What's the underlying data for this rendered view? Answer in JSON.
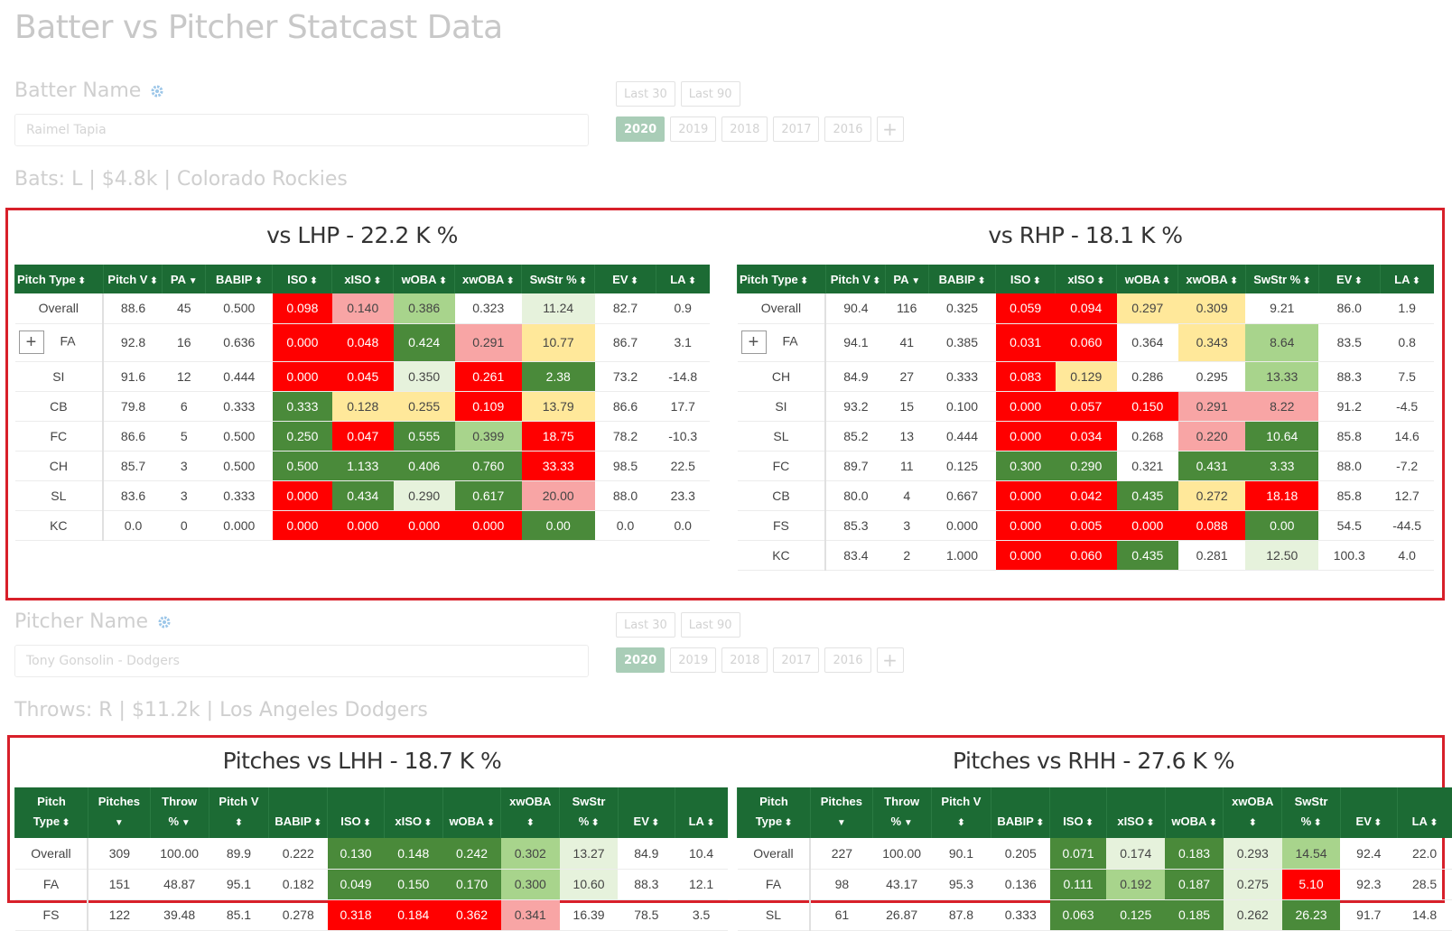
{
  "page": {
    "title": "Batter vs Pitcher Statcast Data"
  },
  "batter": {
    "label": "Batter Name",
    "value": "Raimel Tapia",
    "range_buttons": [
      "Last 30",
      "Last 90"
    ],
    "years": [
      "2020",
      "2019",
      "2018",
      "2017",
      "2016"
    ],
    "active_year": "2020",
    "plus": "+",
    "info": "Bats: L | $4.8k | Colorado Rockies"
  },
  "pitcher": {
    "label": "Pitcher Name",
    "value": "Tony Gonsolin - Dodgers",
    "range_buttons": [
      "Last 30",
      "Last 90"
    ],
    "years": [
      "2020",
      "2019",
      "2018",
      "2017",
      "2016"
    ],
    "active_year": "2020",
    "plus": "+",
    "info": "Throws: R | $11.2k | Los Angeles Dodgers"
  },
  "batter_tables": {
    "headers": [
      "Pitch Type",
      "Pitch V",
      "PA",
      "BABIP",
      "ISO",
      "xISO",
      "wOBA",
      "xwOBA",
      "SwStr %",
      "EV",
      "LA"
    ],
    "lhp": {
      "title": "vs LHP - 22.2 K %",
      "rows": [
        [
          "Overall",
          "88.6",
          "45",
          "0.500",
          "0.098",
          "0.140",
          "0.386",
          "0.323",
          "11.24",
          "82.7",
          "0.9"
        ],
        [
          "FA",
          "92.8",
          "16",
          "0.636",
          "0.000",
          "0.048",
          "0.424",
          "0.291",
          "10.77",
          "86.7",
          "3.1"
        ],
        [
          "SI",
          "91.6",
          "12",
          "0.444",
          "0.000",
          "0.045",
          "0.350",
          "0.261",
          "2.38",
          "73.2",
          "-14.8"
        ],
        [
          "CB",
          "79.8",
          "6",
          "0.333",
          "0.333",
          "0.128",
          "0.255",
          "0.109",
          "13.79",
          "86.6",
          "17.7"
        ],
        [
          "FC",
          "86.6",
          "5",
          "0.500",
          "0.250",
          "0.047",
          "0.555",
          "0.399",
          "18.75",
          "78.2",
          "-10.3"
        ],
        [
          "CH",
          "85.7",
          "3",
          "0.500",
          "0.500",
          "1.133",
          "0.406",
          "0.760",
          "33.33",
          "98.5",
          "22.5"
        ],
        [
          "SL",
          "83.6",
          "3",
          "0.333",
          "0.000",
          "0.434",
          "0.290",
          "0.617",
          "20.00",
          "88.0",
          "23.3"
        ],
        [
          "KC",
          "0.0",
          "0",
          "0.000",
          "0.000",
          "0.000",
          "0.000",
          "0.000",
          "0.00",
          "0.0",
          "0.0"
        ]
      ],
      "colors": [
        [
          "",
          "",
          "",
          "",
          "r",
          "lr",
          "lg",
          "",
          "vlg",
          "",
          ""
        ],
        [
          "",
          "",
          "",
          "",
          "r",
          "r",
          "g",
          "lr",
          "y",
          "",
          ""
        ],
        [
          "",
          "",
          "",
          "",
          "r",
          "r",
          "vlg",
          "r",
          "g",
          "",
          ""
        ],
        [
          "",
          "",
          "",
          "",
          "g",
          "y",
          "y",
          "r",
          "y",
          "",
          ""
        ],
        [
          "",
          "",
          "",
          "",
          "g",
          "r",
          "g",
          "lg",
          "r",
          "",
          ""
        ],
        [
          "",
          "",
          "",
          "",
          "g",
          "g",
          "g",
          "g",
          "r",
          "",
          ""
        ],
        [
          "",
          "",
          "",
          "",
          "r",
          "g",
          "vlg",
          "g",
          "lr",
          "",
          ""
        ],
        [
          "",
          "",
          "",
          "",
          "r",
          "r",
          "r",
          "r",
          "g",
          "",
          ""
        ]
      ]
    },
    "rhp": {
      "title": "vs RHP - 18.1 K %",
      "rows": [
        [
          "Overall",
          "90.4",
          "116",
          "0.325",
          "0.059",
          "0.094",
          "0.297",
          "0.309",
          "9.21",
          "86.0",
          "1.9"
        ],
        [
          "FA",
          "94.1",
          "41",
          "0.385",
          "0.031",
          "0.060",
          "0.364",
          "0.343",
          "8.64",
          "83.5",
          "0.8"
        ],
        [
          "CH",
          "84.9",
          "27",
          "0.333",
          "0.083",
          "0.129",
          "0.286",
          "0.295",
          "13.33",
          "88.3",
          "7.5"
        ],
        [
          "SI",
          "93.2",
          "15",
          "0.100",
          "0.000",
          "0.057",
          "0.150",
          "0.291",
          "8.22",
          "91.2",
          "-4.5"
        ],
        [
          "SL",
          "85.2",
          "13",
          "0.444",
          "0.000",
          "0.034",
          "0.268",
          "0.220",
          "10.64",
          "85.8",
          "14.6"
        ],
        [
          "FC",
          "89.7",
          "11",
          "0.125",
          "0.300",
          "0.290",
          "0.321",
          "0.431",
          "3.33",
          "88.0",
          "-7.2"
        ],
        [
          "CB",
          "80.0",
          "4",
          "0.667",
          "0.000",
          "0.042",
          "0.435",
          "0.272",
          "18.18",
          "85.8",
          "12.7"
        ],
        [
          "FS",
          "85.3",
          "3",
          "0.000",
          "0.000",
          "0.005",
          "0.000",
          "0.088",
          "0.00",
          "54.5",
          "-44.5"
        ],
        [
          "KC",
          "83.4",
          "2",
          "1.000",
          "0.000",
          "0.060",
          "0.435",
          "0.281",
          "12.50",
          "100.3",
          "4.0"
        ]
      ],
      "colors": [
        [
          "",
          "",
          "",
          "",
          "r",
          "r",
          "y",
          "y",
          "",
          "",
          ""
        ],
        [
          "",
          "",
          "",
          "",
          "r",
          "r",
          "",
          "y",
          "lg",
          "",
          ""
        ],
        [
          "",
          "",
          "",
          "",
          "r",
          "y",
          "",
          "",
          "lg",
          "",
          ""
        ],
        [
          "",
          "",
          "",
          "",
          "r",
          "r",
          "r",
          "lr",
          "lr",
          "",
          ""
        ],
        [
          "",
          "",
          "",
          "",
          "r",
          "r",
          "",
          "lr",
          "g",
          "",
          ""
        ],
        [
          "",
          "",
          "",
          "",
          "g",
          "g",
          "",
          "g",
          "g",
          "",
          ""
        ],
        [
          "",
          "",
          "",
          "",
          "r",
          "r",
          "g",
          "y",
          "r",
          "",
          ""
        ],
        [
          "",
          "",
          "",
          "",
          "r",
          "r",
          "r",
          "r",
          "g",
          "",
          ""
        ],
        [
          "",
          "",
          "",
          "",
          "r",
          "r",
          "g",
          "",
          "vlg",
          "",
          ""
        ]
      ]
    }
  },
  "pitcher_tables": {
    "headers": [
      [
        "Pitch",
        "Type"
      ],
      [
        "Pitches",
        ""
      ],
      [
        "Throw",
        "%"
      ],
      [
        "Pitch V",
        ""
      ],
      [
        "",
        "BABIP"
      ],
      [
        "",
        "ISO"
      ],
      [
        "",
        "xISO"
      ],
      [
        "",
        "wOBA"
      ],
      [
        "xwOBA",
        ""
      ],
      [
        "SwStr",
        "%"
      ],
      [
        "",
        "EV"
      ],
      [
        "",
        "LA"
      ]
    ],
    "lhh": {
      "title": "Pitches vs LHH - 18.7 K %",
      "rows": [
        [
          "Overall",
          "309",
          "100.00",
          "89.9",
          "0.222",
          "0.130",
          "0.148",
          "0.242",
          "0.302",
          "13.27",
          "84.9",
          "10.4"
        ],
        [
          "FA",
          "151",
          "48.87",
          "95.1",
          "0.182",
          "0.049",
          "0.150",
          "0.170",
          "0.300",
          "10.60",
          "88.3",
          "12.1"
        ],
        [
          "FS",
          "122",
          "39.48",
          "85.1",
          "0.278",
          "0.318",
          "0.184",
          "0.362",
          "0.341",
          "16.39",
          "78.5",
          "3.5"
        ]
      ],
      "colors": [
        [
          "",
          "",
          "",
          "",
          "",
          "g",
          "g",
          "g",
          "lg",
          "vlg",
          "",
          ""
        ],
        [
          "",
          "",
          "",
          "",
          "",
          "g",
          "g",
          "g",
          "lg",
          "vlg",
          "",
          ""
        ],
        [
          "",
          "",
          "",
          "",
          "",
          "r",
          "r",
          "r",
          "lr",
          "",
          "",
          ""
        ]
      ]
    },
    "rhh": {
      "title": "Pitches vs RHH - 27.6 K %",
      "rows": [
        [
          "Overall",
          "227",
          "100.00",
          "90.1",
          "0.205",
          "0.071",
          "0.174",
          "0.183",
          "0.293",
          "14.54",
          "92.4",
          "22.0"
        ],
        [
          "FA",
          "98",
          "43.17",
          "95.3",
          "0.136",
          "0.111",
          "0.192",
          "0.187",
          "0.275",
          "5.10",
          "92.3",
          "28.5"
        ],
        [
          "SL",
          "61",
          "26.87",
          "87.8",
          "0.333",
          "0.063",
          "0.125",
          "0.185",
          "0.262",
          "26.23",
          "91.7",
          "14.8"
        ]
      ],
      "colors": [
        [
          "",
          "",
          "",
          "",
          "",
          "g",
          "vlg",
          "g",
          "vlg",
          "lg",
          "",
          ""
        ],
        [
          "",
          "",
          "",
          "",
          "",
          "g",
          "lg",
          "g",
          "vlg",
          "r",
          "",
          ""
        ],
        [
          "",
          "",
          "",
          "",
          "",
          "g",
          "g",
          "g",
          "vlg",
          "g",
          "",
          ""
        ]
      ]
    }
  }
}
